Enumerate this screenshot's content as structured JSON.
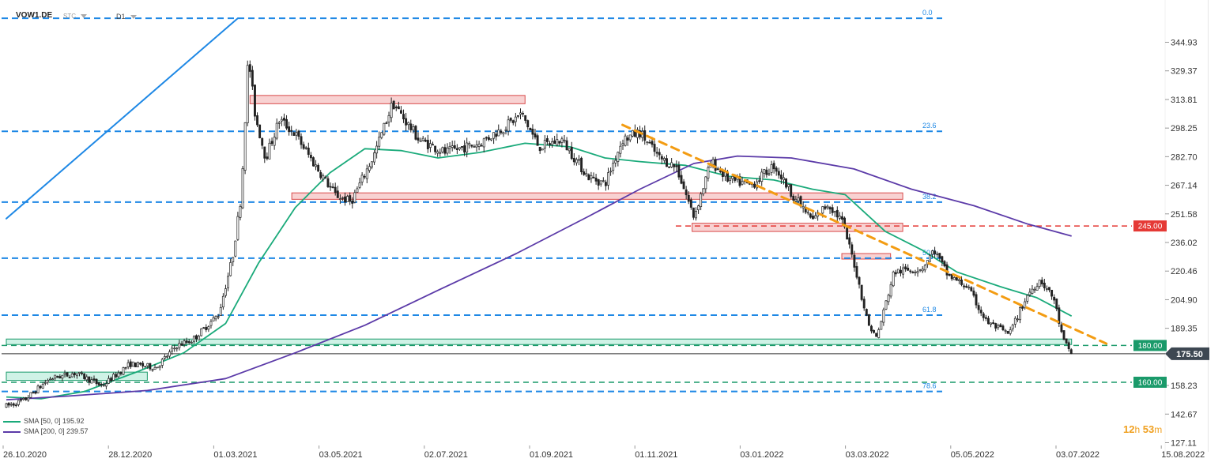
{
  "header": {
    "symbol": "VOW1.DE",
    "data_source": "STC",
    "timeframe": "D1"
  },
  "countdown": {
    "hours": "12",
    "h_label": "h",
    "minutes": "53",
    "m_label": "m"
  },
  "legend": [
    {
      "label": "SMA [50, 0] 195.92",
      "color": "#1aaa7a"
    },
    {
      "label": "SMA [200, 0] 239.57",
      "color": "#5b3aa8"
    }
  ],
  "chart_data": {
    "type": "candlestick",
    "title": "",
    "xlabel": "",
    "ylabel": "",
    "y_ticks": [
      344.93,
      329.37,
      313.81,
      298.25,
      282.7,
      267.14,
      251.58,
      236.02,
      220.46,
      204.9,
      189.35,
      158.23,
      142.67,
      127.11
    ],
    "x_tick_labels": [
      "26.10.2020",
      "28.12.2020",
      "01.03.2021",
      "03.05.2021",
      "02.07.2021",
      "01.09.2021",
      "01.11.2021",
      "03.01.2022",
      "03.03.2022",
      "05.05.2022",
      "03.07.2022",
      "15.08.2022"
    ],
    "last_price": {
      "value": 175.5,
      "label": "175.50"
    },
    "horizontal_levels": [
      {
        "value": 245.0,
        "label": "245.00",
        "color": "#e53935"
      },
      {
        "value": 180.0,
        "label": "180.00",
        "color": "#1a9a6a"
      },
      {
        "value": 160.0,
        "label": "160.00",
        "color": "#1a9a6a"
      }
    ],
    "fibonacci_levels": [
      {
        "ratio": "0.0",
        "value": 358.0
      },
      {
        "ratio": "23.6",
        "value": 296.5
      },
      {
        "ratio": "38.2",
        "value": 258.0
      },
      {
        "ratio": "50.0",
        "value": 227.5
      },
      {
        "ratio": "61.8",
        "value": 196.5
      },
      {
        "ratio": "78.6",
        "value": 155.0
      }
    ],
    "resistance_zones": [
      {
        "from": 311.5,
        "to": 316.0,
        "x_from": "2021-03-15",
        "x_to": "2021-08-20"
      },
      {
        "from": 259.5,
        "to": 263.0,
        "x_from": "2021-04-08",
        "x_to": "2022-03-25"
      },
      {
        "from": 242.0,
        "to": 246.5,
        "x_from": "2021-11-24",
        "x_to": "2022-03-25"
      },
      {
        "from": 227.0,
        "to": 230.0,
        "x_from": "2022-02-18",
        "x_to": "2022-03-18"
      }
    ],
    "support_zones": [
      {
        "from": 180.5,
        "to": 183.5,
        "x_from": "2020-10-26",
        "x_to": "2022-06-30"
      },
      {
        "from": 161.0,
        "to": 165.5,
        "x_from": "2020-10-26",
        "x_to": "2021-01-15"
      }
    ],
    "trendlines": [
      {
        "name": "uptrend",
        "color": "#1e88e5",
        "from": {
          "date": "2020-10-26",
          "value": 249.0
        },
        "to": {
          "date": "2021-03-08",
          "value": 358.0
        }
      },
      {
        "name": "downtrend",
        "color": "#f39c12",
        "from": {
          "date": "2021-10-15",
          "value": 300.0
        },
        "to": {
          "date": "2022-07-20",
          "value": 181.0
        }
      }
    ],
    "series": [
      {
        "name": "SMA [50, 0]",
        "color": "#1aaa7a",
        "points": [
          [
            "2020-10-26",
            152.0
          ],
          [
            "2020-11-15",
            151.0
          ],
          [
            "2020-12-10",
            155.0
          ],
          [
            "2021-01-10",
            166.0
          ],
          [
            "2021-02-05",
            176.0
          ],
          [
            "2021-03-01",
            192.0
          ],
          [
            "2021-03-20",
            225.0
          ],
          [
            "2021-04-10",
            255.0
          ],
          [
            "2021-04-30",
            274.0
          ],
          [
            "2021-05-20",
            287.0
          ],
          [
            "2021-06-10",
            286.0
          ],
          [
            "2021-07-01",
            282.0
          ],
          [
            "2021-07-25",
            285.0
          ],
          [
            "2021-08-20",
            290.0
          ],
          [
            "2021-09-15",
            288.0
          ],
          [
            "2021-10-05",
            282.0
          ],
          [
            "2021-10-25",
            280.0
          ],
          [
            "2021-11-20",
            278.0
          ],
          [
            "2021-12-15",
            272.0
          ],
          [
            "2022-01-10",
            270.0
          ],
          [
            "2022-02-01",
            265.0
          ],
          [
            "2022-02-20",
            262.0
          ],
          [
            "2022-03-15",
            242.0
          ],
          [
            "2022-04-05",
            232.0
          ],
          [
            "2022-04-25",
            220.0
          ],
          [
            "2022-05-20",
            212.0
          ],
          [
            "2022-06-10",
            206.0
          ],
          [
            "2022-06-30",
            196.0
          ]
        ]
      },
      {
        "name": "SMA [200, 0]",
        "color": "#5b3aa8",
        "points": [
          [
            "2020-10-26",
            150.5
          ],
          [
            "2020-12-01",
            152.5
          ],
          [
            "2021-01-15",
            155.5
          ],
          [
            "2021-03-01",
            162.0
          ],
          [
            "2021-04-10",
            176.0
          ],
          [
            "2021-05-20",
            191.0
          ],
          [
            "2021-07-01",
            210.0
          ],
          [
            "2021-08-15",
            230.0
          ],
          [
            "2021-09-25",
            250.0
          ],
          [
            "2021-10-25",
            265.0
          ],
          [
            "2021-11-25",
            279.0
          ],
          [
            "2021-12-20",
            283.0
          ],
          [
            "2022-01-20",
            282.0
          ],
          [
            "2022-02-25",
            276.0
          ],
          [
            "2022-03-30",
            265.0
          ],
          [
            "2022-05-05",
            256.0
          ],
          [
            "2022-06-05",
            246.0
          ],
          [
            "2022-06-30",
            239.5
          ]
        ]
      }
    ],
    "price_path": [
      [
        "2020-10-26",
        147
      ],
      [
        "2020-11-05",
        150
      ],
      [
        "2020-11-20",
        162
      ],
      [
        "2020-12-05",
        165
      ],
      [
        "2020-12-20",
        158
      ],
      [
        "2021-01-05",
        170
      ],
      [
        "2021-01-20",
        168
      ],
      [
        "2021-02-01",
        180
      ],
      [
        "2021-02-10",
        183
      ],
      [
        "2021-02-25",
        197
      ],
      [
        "2021-03-05",
        228
      ],
      [
        "2021-03-10",
        262
      ],
      [
        "2021-03-14",
        338
      ],
      [
        "2021-03-18",
        305
      ],
      [
        "2021-03-24",
        282
      ],
      [
        "2021-04-01",
        303
      ],
      [
        "2021-04-10",
        295
      ],
      [
        "2021-04-20",
        280
      ],
      [
        "2021-05-03",
        262
      ],
      [
        "2021-05-12",
        258
      ],
      [
        "2021-05-25",
        283
      ],
      [
        "2021-06-05",
        312
      ],
      [
        "2021-06-20",
        292
      ],
      [
        "2021-07-05",
        285
      ],
      [
        "2021-07-25",
        290
      ],
      [
        "2021-08-10",
        300
      ],
      [
        "2021-08-18",
        306
      ],
      [
        "2021-08-28",
        288
      ],
      [
        "2021-09-10",
        292
      ],
      [
        "2021-09-25",
        272
      ],
      [
        "2021-10-05",
        268
      ],
      [
        "2021-10-15",
        292
      ],
      [
        "2021-10-25",
        296
      ],
      [
        "2021-11-05",
        282
      ],
      [
        "2021-11-15",
        277
      ],
      [
        "2021-11-25",
        250
      ],
      [
        "2021-12-05",
        280
      ],
      [
        "2021-12-15",
        270
      ],
      [
        "2021-12-28",
        267
      ],
      [
        "2022-01-10",
        278
      ],
      [
        "2022-01-20",
        263
      ],
      [
        "2022-02-01",
        248
      ],
      [
        "2022-02-10",
        257
      ],
      [
        "2022-02-18",
        248
      ],
      [
        "2022-02-25",
        225
      ],
      [
        "2022-03-05",
        192
      ],
      [
        "2022-03-10",
        184
      ],
      [
        "2022-03-20",
        220
      ],
      [
        "2022-04-05",
        222
      ],
      [
        "2022-04-12",
        232
      ],
      [
        "2022-04-20",
        218
      ],
      [
        "2022-05-01",
        212
      ],
      [
        "2022-05-12",
        193
      ],
      [
        "2022-05-25",
        186
      ],
      [
        "2022-06-05",
        208
      ],
      [
        "2022-06-12",
        216
      ],
      [
        "2022-06-20",
        205
      ],
      [
        "2022-06-25",
        183
      ],
      [
        "2022-06-30",
        175.5
      ]
    ]
  }
}
